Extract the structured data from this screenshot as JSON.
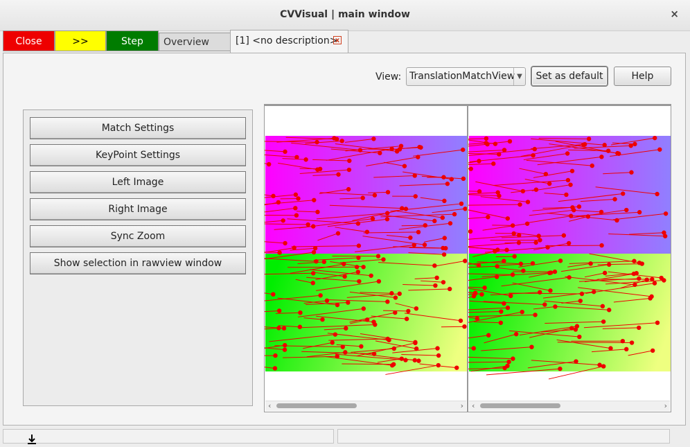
{
  "window": {
    "title": "CVVisual | main window",
    "close_symbol": "×"
  },
  "tabs": {
    "close_label": "Close",
    "forward_label": ">>",
    "step_label": "Step",
    "overview_label": "Overview",
    "active_label": "[1] <no description>",
    "active_close_symbol": "x"
  },
  "view": {
    "label": "View:",
    "selected": "TranslationMatchView",
    "set_default_label": "Set as default",
    "help_label": "Help"
  },
  "side_buttons": [
    "Match Settings",
    "KeyPoint Settings",
    "Left Image",
    "Right Image",
    "Sync Zoom",
    "Show selection in rawview window"
  ],
  "scroll": {
    "left_arrow": "‹",
    "right_arrow": "›"
  },
  "colors": {
    "close_tab": "#ee0000",
    "forward_tab": "#ffff00",
    "step_tab": "#007c00",
    "match_lines": "#ee0000",
    "top_gradient": [
      "#ff00ff",
      "#9080ff"
    ],
    "bottom_gradient": [
      "#00ee00",
      "#eeff80"
    ]
  },
  "icons": [
    "close-icon",
    "tab-close-icon",
    "dropdown-arrow-icon",
    "scroll-left-icon",
    "scroll-right-icon",
    "download-icon"
  ]
}
